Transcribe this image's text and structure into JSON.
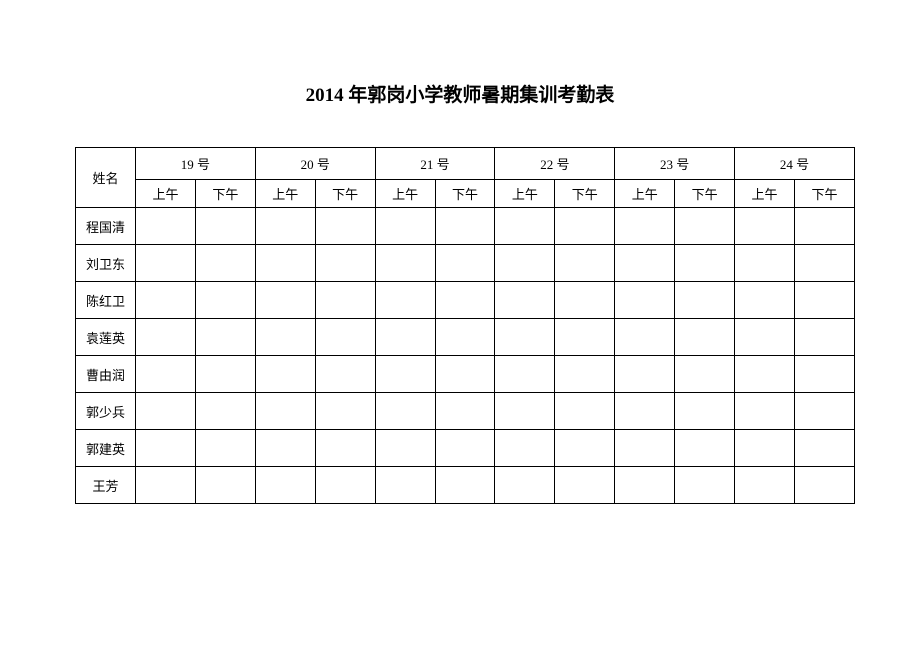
{
  "title": "2014 年郭岗小学教师暑期集训考勤表",
  "table": {
    "name_header": "姓名",
    "days": [
      {
        "label": "19 号",
        "am": "上午",
        "pm": "下午"
      },
      {
        "label": "20 号",
        "am": "上午",
        "pm": "下午"
      },
      {
        "label": "21 号",
        "am": "上午",
        "pm": "下午"
      },
      {
        "label": "22 号",
        "am": "上午",
        "pm": "下午"
      },
      {
        "label": "23 号",
        "am": "上午",
        "pm": "下午"
      },
      {
        "label": "24 号",
        "am": "上午",
        "pm": "下午"
      }
    ],
    "names": [
      "程国清",
      "刘卫东",
      "陈红卫",
      "袁莲英",
      "曹由润",
      "郭少兵",
      "郭建英",
      "王芳"
    ],
    "colors": {
      "background": "#ffffff",
      "border": "#000000",
      "text": "#000000"
    },
    "fonts": {
      "title_size": 19,
      "cell_size": 13,
      "title_weight": "bold"
    }
  }
}
